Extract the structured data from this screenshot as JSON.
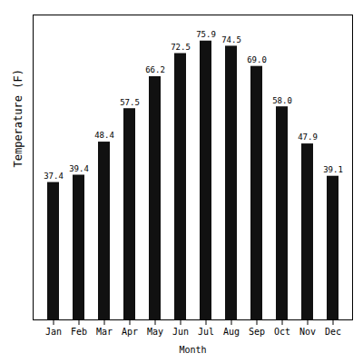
{
  "chart_data": {
    "type": "bar",
    "categories": [
      "Jan",
      "Feb",
      "Mar",
      "Apr",
      "May",
      "Jun",
      "Jul",
      "Aug",
      "Sep",
      "Oct",
      "Nov",
      "Dec"
    ],
    "values": [
      37.4,
      39.4,
      48.4,
      57.5,
      66.2,
      72.5,
      75.9,
      74.5,
      69.0,
      58.0,
      47.9,
      39.1
    ],
    "value_labels": [
      "37.4",
      "39.4",
      "48.4",
      "57.5",
      "66.2",
      "72.5",
      "75.9",
      "74.5",
      "69.0",
      "58.0",
      "47.9",
      "39.1"
    ],
    "color": "#111111",
    "xlabel": "Month",
    "ylabel": "Temperature (F)",
    "ylim": [
      0,
      83
    ],
    "tick_labels": "x",
    "data_labels": true
  }
}
